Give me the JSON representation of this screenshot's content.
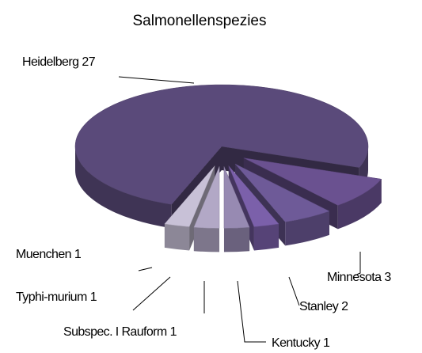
{
  "chart_data": {
    "type": "pie3d",
    "title": "Salmonellenspezies",
    "categories": [
      "Heidelberg",
      "Minnesota",
      "Stanley",
      "Kentucky",
      "Subspec. I Rauform",
      "Typhi-murium",
      "Muenchen"
    ],
    "values": [
      27,
      3,
      2,
      1,
      1,
      1,
      1
    ],
    "colors": [
      "#5a4a7a",
      "#6a5190",
      "#6e5a98",
      "#7b60aa",
      "#978ab2",
      "#b2a8c6",
      "#c8c1d7"
    ]
  }
}
